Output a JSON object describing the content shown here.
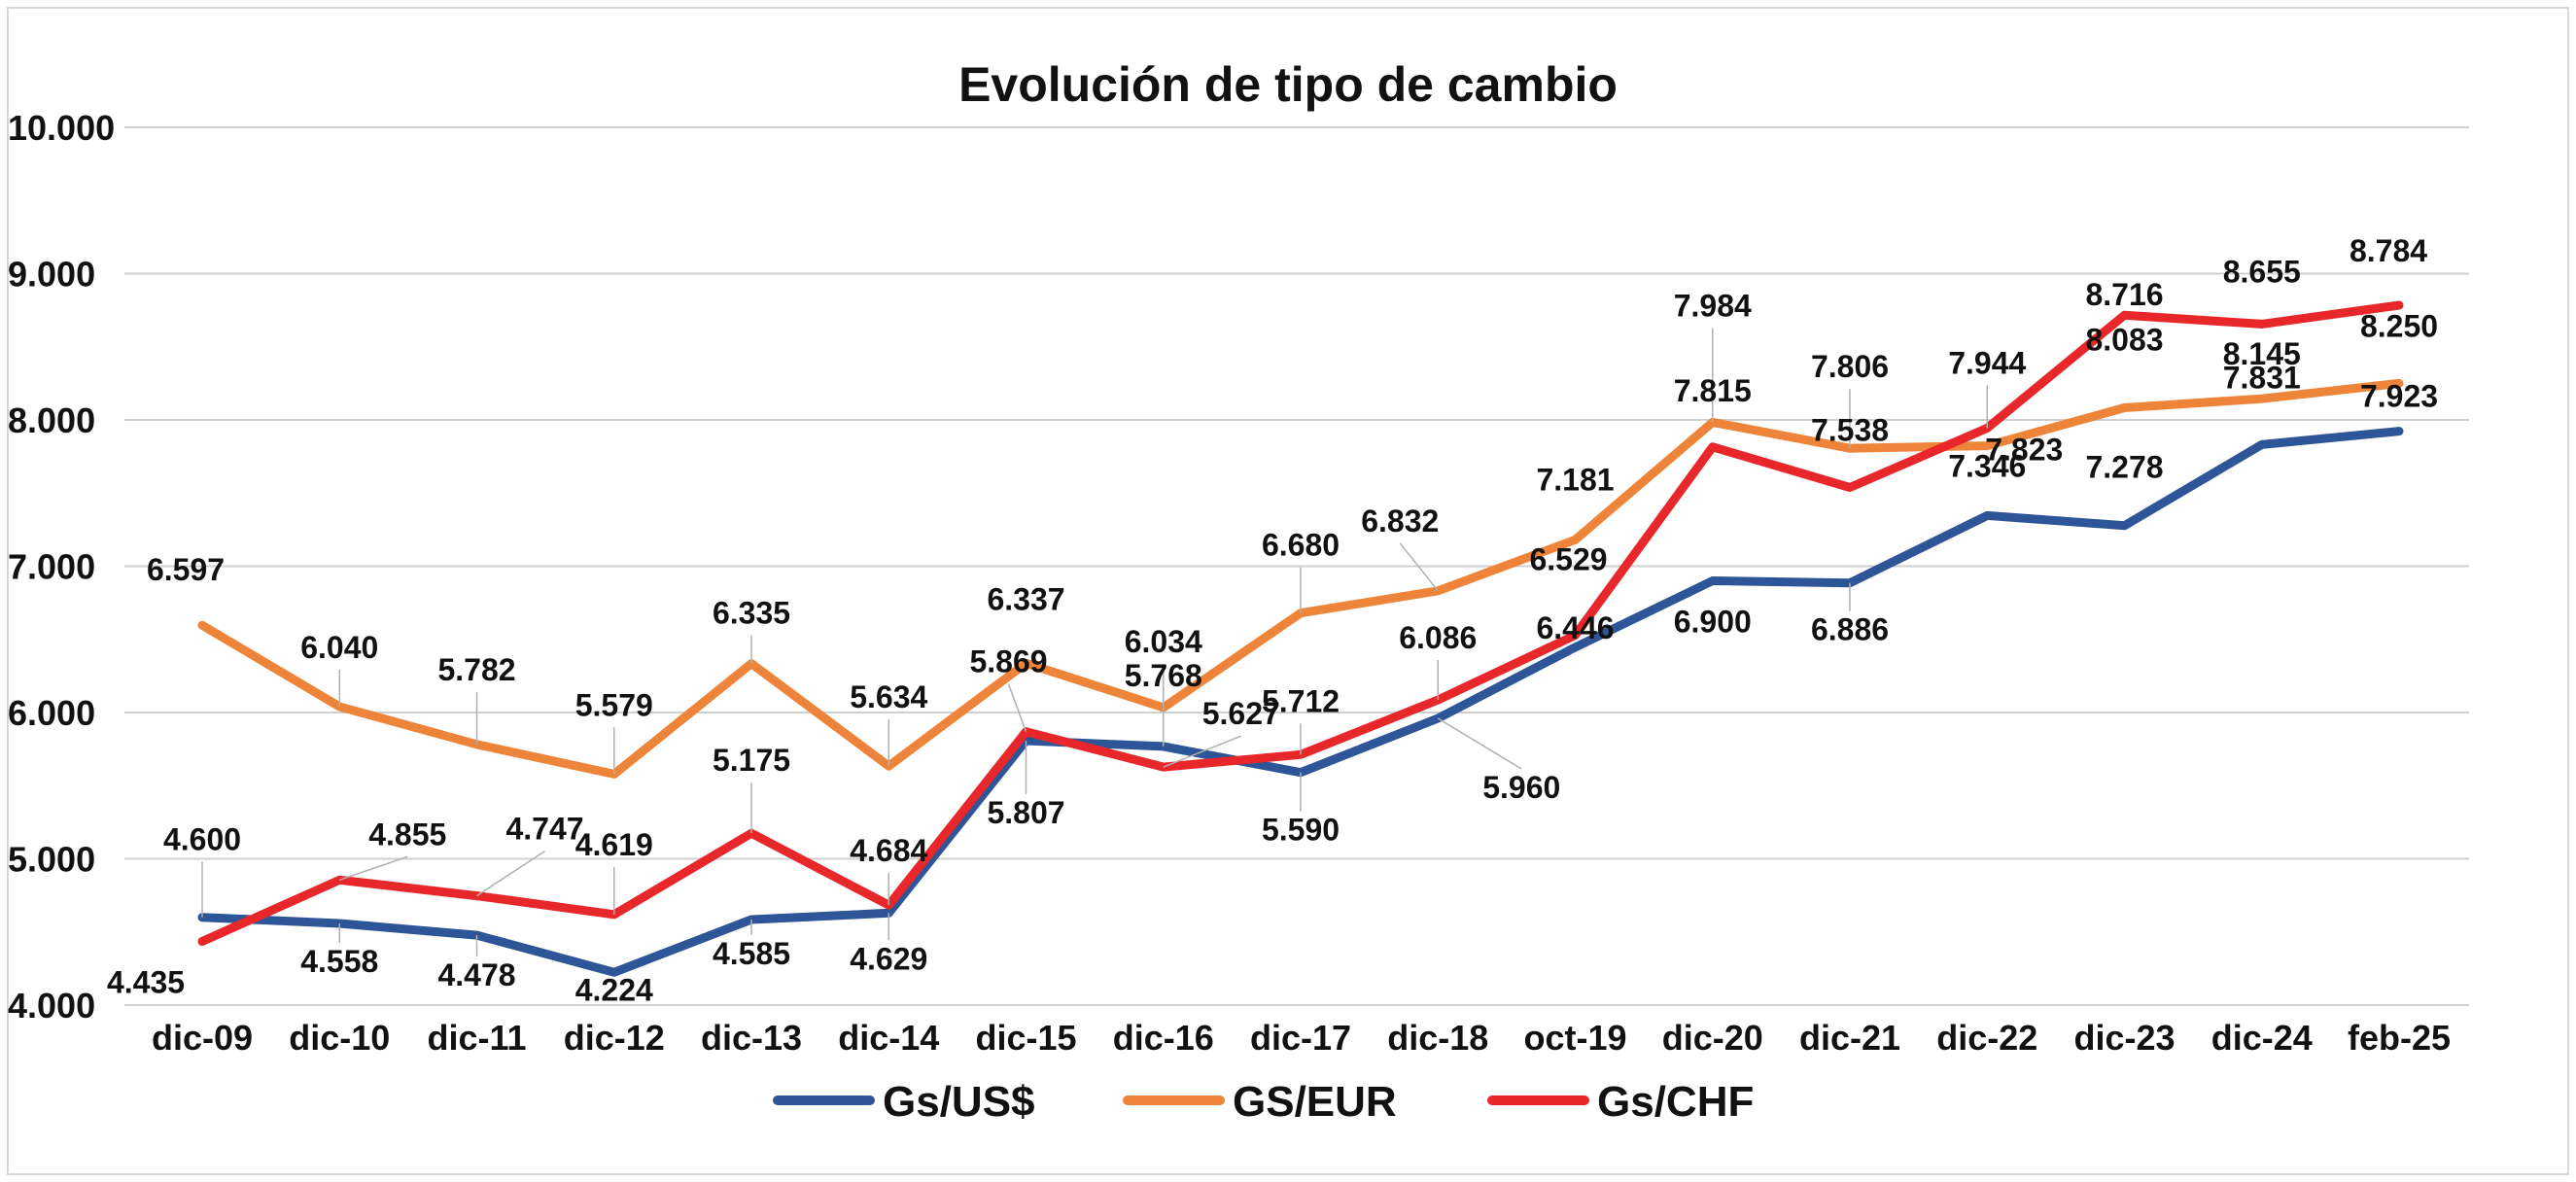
{
  "chart_data": {
    "type": "line",
    "title": "Evolución de tipo de cambio",
    "xlabel": "",
    "ylabel": "",
    "ylim": [
      4000,
      10000
    ],
    "grid": true,
    "legend_position": "bottom",
    "yticks": [
      "4.000",
      "5.000",
      "6.000",
      "7.000",
      "8.000",
      "9.000",
      "10.000"
    ],
    "categories": [
      "dic-09",
      "dic-10",
      "dic-11",
      "dic-12",
      "dic-13",
      "dic-14",
      "dic-15",
      "dic-16",
      "dic-17",
      "dic-18",
      "oct-19",
      "dic-20",
      "dic-21",
      "dic-22",
      "dic-23",
      "dic-24",
      "feb-25"
    ],
    "series": [
      {
        "name": "Gs/US$",
        "color": "#2E5597",
        "values": [
          4600,
          4558,
          4478,
          4224,
          4585,
          4629,
          5807,
          5768,
          5590,
          5960,
          6446,
          6900,
          6886,
          7346,
          7278,
          7831,
          7923
        ],
        "labels": [
          "4.600",
          "4.558",
          "4.478",
          "4.224",
          "4.585",
          "4.629",
          "5.807",
          "5.768",
          "5.590",
          "5.960",
          "6.446",
          "6.900",
          "6.886",
          "7.346",
          "7.278",
          "7.831",
          "7.923"
        ]
      },
      {
        "name": "GS/EUR",
        "color": "#ED8439",
        "values": [
          6597,
          6040,
          5782,
          5579,
          6335,
          5634,
          6337,
          6034,
          6680,
          6832,
          7181,
          7984,
          7806,
          7823,
          8083,
          8145,
          8250
        ],
        "labels": [
          "6.597",
          "6.040",
          "5.782",
          "5.579",
          "6.335",
          "5.634",
          "6.337",
          "6.034",
          "6.680",
          "6.832",
          "7.181",
          "7.984",
          "7.806",
          "7.823",
          "8.083",
          "8.145",
          "8.250"
        ]
      },
      {
        "name": "Gs/CHF",
        "color": "#E8272B",
        "values": [
          4435,
          4855,
          4747,
          4619,
          5175,
          4684,
          5869,
          5627,
          5712,
          6086,
          6529,
          7815,
          7538,
          7944,
          8716,
          8655,
          8784
        ],
        "labels": [
          "4.435",
          "4.855",
          "4.747",
          "4.619",
          "5.175",
          "4.684",
          "5.869",
          "5.627",
          "5.712",
          "6.086",
          "6.529",
          "7.815",
          "7.538",
          "7.944",
          "8.716",
          "8.655",
          "8.784"
        ]
      }
    ]
  }
}
